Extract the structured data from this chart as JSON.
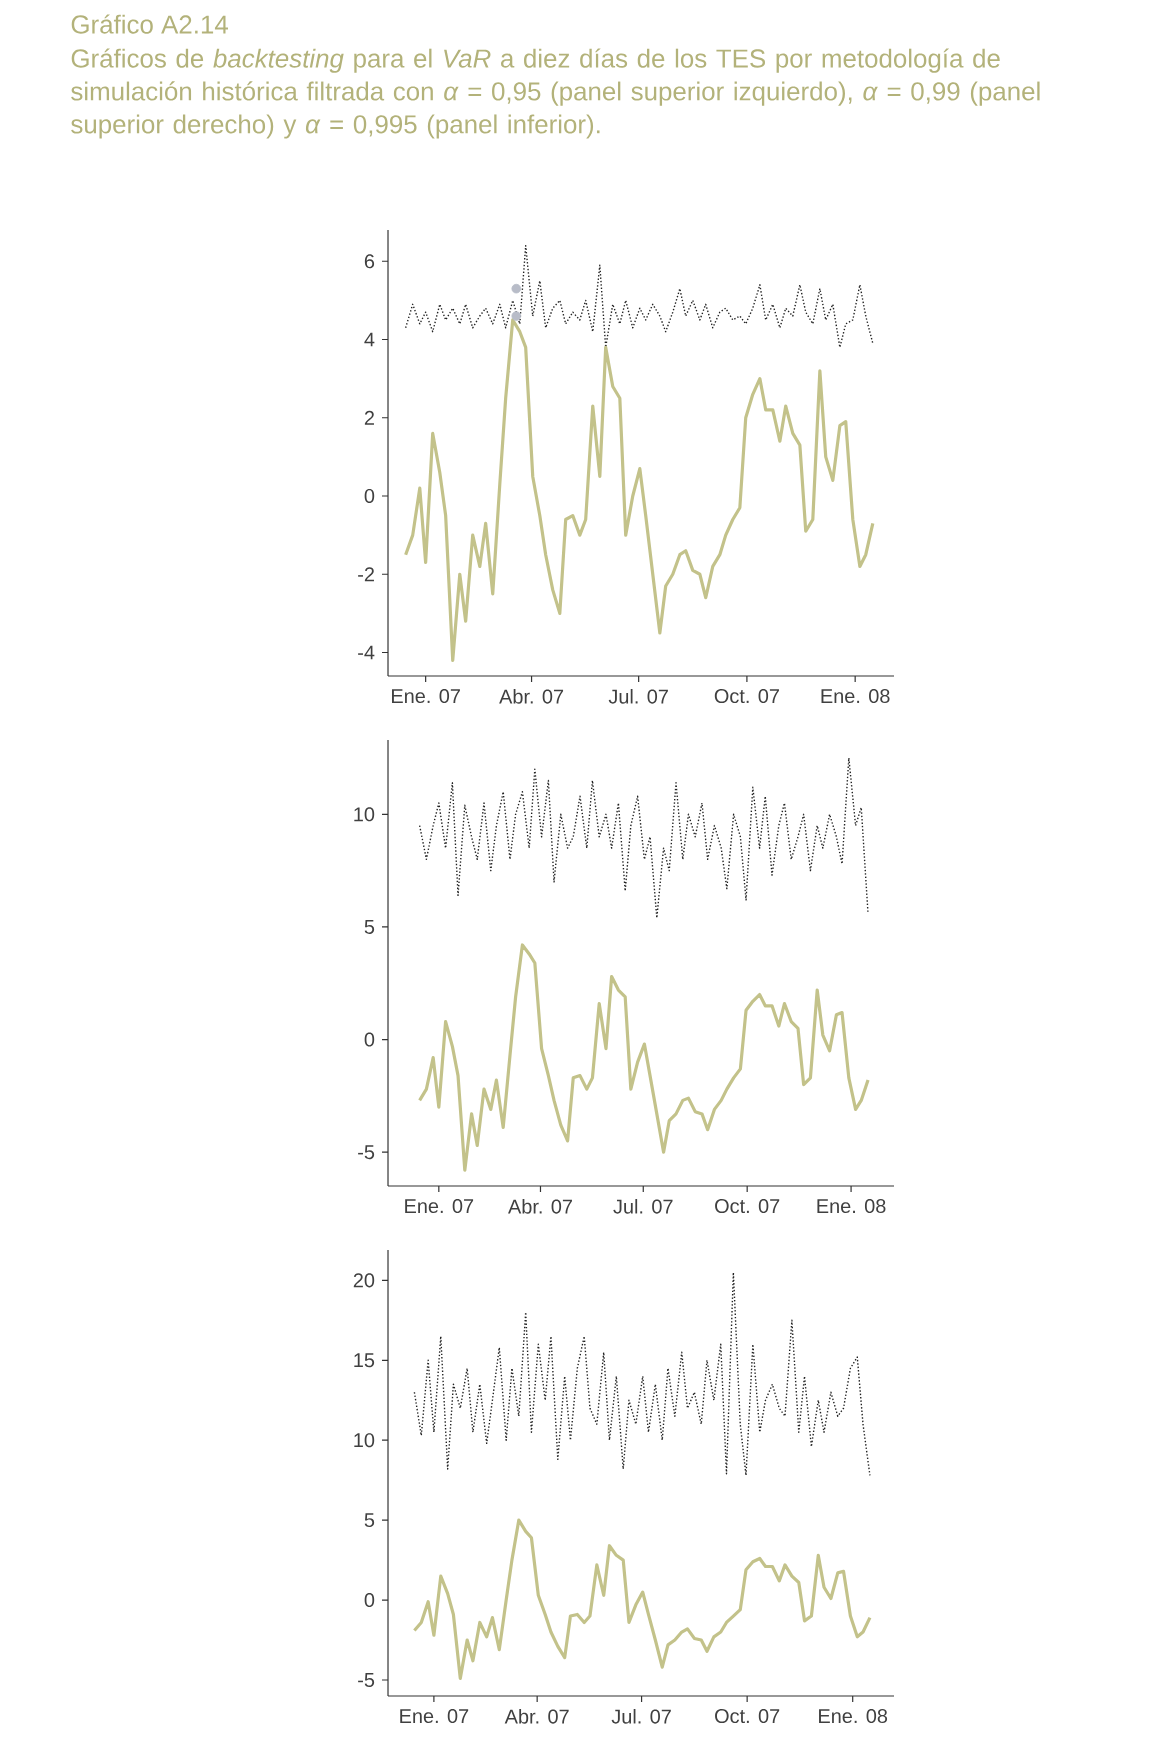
{
  "chart_data": [
    {
      "type": "line",
      "title": "Gráfico A2.14",
      "subtitle": "Gráficos de *backtesting* para el *VaR* a diez días de los TES por metodología de simulación histórica filtrada con *α* = 0,95 (panel superior izquierdo), *α* = 0,99 (panel superior derecho) y *α* = 0,995 (panel inferior).",
      "x": [
        "2006-12-15",
        "2006-12-21",
        "2006-12-27",
        "2007-01-01",
        "2007-01-07",
        "2007-01-13",
        "2007-01-18",
        "2007-01-24",
        "2007-01-30",
        "2007-02-04",
        "2007-02-10",
        "2007-02-16",
        "2007-02-21",
        "2007-02-27",
        "2007-03-05",
        "2007-03-10",
        "2007-03-16",
        "2007-03-22",
        "2007-03-27",
        "2007-04-02",
        "2007-04-08",
        "2007-04-13",
        "2007-04-19",
        "2007-04-25",
        "2007-04-30",
        "2007-05-06",
        "2007-05-12",
        "2007-05-17",
        "2007-05-23",
        "2007-05-29",
        "2007-06-03",
        "2007-06-09",
        "2007-06-15",
        "2007-06-20",
        "2007-06-26",
        "2007-07-02",
        "2007-07-07",
        "2007-07-13",
        "2007-07-19",
        "2007-07-24",
        "2007-07-30",
        "2007-08-05",
        "2007-08-10",
        "2007-08-16",
        "2007-08-22",
        "2007-08-27",
        "2007-09-02",
        "2007-09-08",
        "2007-09-13",
        "2007-09-19",
        "2007-09-25",
        "2007-09-30",
        "2007-10-06",
        "2007-10-12",
        "2007-10-17",
        "2007-10-23",
        "2007-10-29",
        "2007-11-03",
        "2007-11-09",
        "2007-11-15",
        "2007-11-20",
        "2007-11-26",
        "2007-12-02",
        "2007-12-07",
        "2007-12-13",
        "2007-12-19",
        "2007-12-24",
        "2007-12-30",
        "2008-01-05",
        "2008-01-10",
        "2008-01-16"
      ],
      "series": [
        {
          "color": "#222222",
          "line_style": "dotted",
          "values": [
            4.3,
            4.9,
            4.4,
            4.7,
            4.2,
            4.9,
            4.5,
            4.8,
            4.4,
            4.9,
            4.3,
            4.6,
            4.8,
            4.4,
            4.9,
            4.3,
            5.0,
            4.4,
            6.4,
            4.6,
            5.5,
            4.3,
            4.8,
            5.0,
            4.4,
            4.7,
            4.5,
            5.0,
            4.2,
            5.9,
            3.8,
            4.9,
            4.4,
            5.0,
            4.3,
            4.8,
            4.5,
            4.9,
            4.6,
            4.2,
            4.7,
            5.3,
            4.6,
            5.0,
            4.5,
            4.9,
            4.3,
            4.7,
            4.8,
            4.5,
            4.6,
            4.4,
            4.8,
            5.4,
            4.5,
            4.9,
            4.3,
            4.8,
            4.6,
            5.4,
            4.7,
            4.4,
            5.3,
            4.5,
            4.9,
            3.8,
            4.4,
            4.5,
            5.4,
            4.6,
            3.9
          ]
        },
        {
          "color": "#c3c28a",
          "line_style": "solid",
          "values": [
            -1.5,
            -1.0,
            0.2,
            -1.7,
            1.6,
            0.6,
            -0.5,
            -4.2,
            -2.0,
            -3.2,
            -1.0,
            -1.8,
            -0.7,
            -2.5,
            0.3,
            2.5,
            4.5,
            4.2,
            3.8,
            0.5,
            -0.5,
            -1.5,
            -2.4,
            -3.0,
            -0.6,
            -0.5,
            -1.0,
            -0.6,
            2.3,
            0.5,
            3.8,
            2.8,
            2.5,
            -1.0,
            0.0,
            0.7,
            -0.5,
            -2.0,
            -3.5,
            -2.3,
            -2.0,
            -1.5,
            -1.4,
            -1.9,
            -2.0,
            -2.6,
            -1.8,
            -1.5,
            -1.0,
            -0.6,
            -0.3,
            2.0,
            2.6,
            3.0,
            2.2,
            2.2,
            1.4,
            2.3,
            1.6,
            1.3,
            -0.9,
            -0.6,
            3.2,
            1.0,
            0.4,
            1.8,
            1.9,
            -0.6,
            -1.8,
            -1.5,
            -0.7
          ]
        },
        {
          "type": "scatter",
          "marker": "circle",
          "color": "#b8bcc8",
          "x": [
            "2007-03-19",
            "2007-03-19"
          ],
          "values": [
            5.3,
            4.6
          ]
        }
      ],
      "xlim": [
        "2006-11-30",
        "2008-02-03"
      ],
      "ylim": [
        -4.6,
        6.8
      ],
      "xticks": [
        {
          "value": "2007-01-01",
          "label": "Ene. 07"
        },
        {
          "value": "2007-04-01",
          "label": "Abr. 07"
        },
        {
          "value": "2007-07-01",
          "label": "Jul. 07"
        },
        {
          "value": "2007-10-01",
          "label": "Oct. 07"
        },
        {
          "value": "2008-01-01",
          "label": "Ene. 08"
        }
      ],
      "yticks": [
        -4,
        -2,
        0,
        2,
        4,
        6
      ]
    },
    {
      "type": "line",
      "x": [
        "2006-12-15",
        "2006-12-21",
        "2006-12-27",
        "2007-01-01",
        "2007-01-07",
        "2007-01-13",
        "2007-01-18",
        "2007-01-24",
        "2007-01-30",
        "2007-02-04",
        "2007-02-10",
        "2007-02-16",
        "2007-02-21",
        "2007-02-27",
        "2007-03-05",
        "2007-03-10",
        "2007-03-16",
        "2007-03-22",
        "2007-03-27",
        "2007-04-02",
        "2007-04-08",
        "2007-04-13",
        "2007-04-19",
        "2007-04-25",
        "2007-04-30",
        "2007-05-06",
        "2007-05-12",
        "2007-05-17",
        "2007-05-23",
        "2007-05-29",
        "2007-06-03",
        "2007-06-09",
        "2007-06-15",
        "2007-06-20",
        "2007-06-26",
        "2007-07-02",
        "2007-07-07",
        "2007-07-13",
        "2007-07-19",
        "2007-07-24",
        "2007-07-30",
        "2007-08-05",
        "2007-08-10",
        "2007-08-16",
        "2007-08-22",
        "2007-08-27",
        "2007-09-02",
        "2007-09-08",
        "2007-09-13",
        "2007-09-19",
        "2007-09-25",
        "2007-09-30",
        "2007-10-06",
        "2007-10-12",
        "2007-10-17",
        "2007-10-23",
        "2007-10-29",
        "2007-11-03",
        "2007-11-09",
        "2007-11-15",
        "2007-11-20",
        "2007-11-26",
        "2007-12-02",
        "2007-12-07",
        "2007-12-13",
        "2007-12-19",
        "2007-12-24",
        "2007-12-30",
        "2008-01-05",
        "2008-01-10",
        "2008-01-16"
      ],
      "series": [
        {
          "color": "#222222",
          "line_style": "dotted",
          "values": [
            9.5,
            8.0,
            9.5,
            10.5,
            8.5,
            11.4,
            6.4,
            10.4,
            9.0,
            8.0,
            10.5,
            7.5,
            9.5,
            11.0,
            8.0,
            10.0,
            11.0,
            8.5,
            12.0,
            9.0,
            11.5,
            7.0,
            10.0,
            8.5,
            9.0,
            10.8,
            8.5,
            11.5,
            9.0,
            10.0,
            8.5,
            10.5,
            6.6,
            9.5,
            10.8,
            8.0,
            9.0,
            5.4,
            8.5,
            7.5,
            11.4,
            8.0,
            10.0,
            9.0,
            10.5,
            8.0,
            9.5,
            8.5,
            6.7,
            10.0,
            9.0,
            6.2,
            11.2,
            8.5,
            10.8,
            7.3,
            9.5,
            10.5,
            8.0,
            9.0,
            10.0,
            7.5,
            9.5,
            8.5,
            10.0,
            9.0,
            7.8,
            12.5,
            9.5,
            10.3,
            5.6
          ]
        },
        {
          "color": "#c3c28a",
          "line_style": "solid",
          "values": [
            -2.7,
            -2.2,
            -0.8,
            -3.0,
            0.8,
            -0.3,
            -1.6,
            -5.8,
            -3.3,
            -4.7,
            -2.2,
            -3.1,
            -1.8,
            -3.9,
            -0.7,
            1.9,
            4.2,
            3.8,
            3.4,
            -0.4,
            -1.6,
            -2.7,
            -3.8,
            -4.5,
            -1.7,
            -1.6,
            -2.2,
            -1.7,
            1.6,
            -0.4,
            2.8,
            2.2,
            1.9,
            -2.2,
            -1.0,
            -0.2,
            -1.6,
            -3.3,
            -5.0,
            -3.6,
            -3.3,
            -2.7,
            -2.6,
            -3.2,
            -3.3,
            -4.0,
            -3.1,
            -2.7,
            -2.2,
            -1.7,
            -1.3,
            1.3,
            1.7,
            2.0,
            1.5,
            1.5,
            0.6,
            1.6,
            0.8,
            0.5,
            -2.0,
            -1.7,
            2.2,
            0.2,
            -0.5,
            1.1,
            1.2,
            -1.7,
            -3.1,
            -2.7,
            -1.8
          ]
        }
      ],
      "xlim": [
        "2006-11-17",
        "2008-02-08"
      ],
      "ylim": [
        -6.5,
        13.3
      ],
      "xticks": [
        {
          "value": "2007-01-01",
          "label": "Ene. 07"
        },
        {
          "value": "2007-04-01",
          "label": "Abr. 07"
        },
        {
          "value": "2007-07-01",
          "label": "Jul. 07"
        },
        {
          "value": "2007-10-01",
          "label": "Oct. 07"
        },
        {
          "value": "2008-01-01",
          "label": "Ene. 08"
        }
      ],
      "yticks": [
        -5,
        0,
        5,
        10
      ]
    },
    {
      "type": "line",
      "x": [
        "2006-12-15",
        "2006-12-21",
        "2006-12-27",
        "2007-01-01",
        "2007-01-07",
        "2007-01-13",
        "2007-01-18",
        "2007-01-24",
        "2007-01-30",
        "2007-02-04",
        "2007-02-10",
        "2007-02-16",
        "2007-02-21",
        "2007-02-27",
        "2007-03-05",
        "2007-03-10",
        "2007-03-16",
        "2007-03-22",
        "2007-03-27",
        "2007-04-02",
        "2007-04-08",
        "2007-04-13",
        "2007-04-19",
        "2007-04-25",
        "2007-04-30",
        "2007-05-06",
        "2007-05-12",
        "2007-05-17",
        "2007-05-23",
        "2007-05-29",
        "2007-06-03",
        "2007-06-09",
        "2007-06-15",
        "2007-06-20",
        "2007-06-26",
        "2007-07-02",
        "2007-07-07",
        "2007-07-13",
        "2007-07-19",
        "2007-07-24",
        "2007-07-30",
        "2007-08-05",
        "2007-08-10",
        "2007-08-16",
        "2007-08-22",
        "2007-08-27",
        "2007-09-02",
        "2007-09-08",
        "2007-09-13",
        "2007-09-19",
        "2007-09-25",
        "2007-09-30",
        "2007-10-06",
        "2007-10-12",
        "2007-10-17",
        "2007-10-23",
        "2007-10-29",
        "2007-11-03",
        "2007-11-09",
        "2007-11-15",
        "2007-11-20",
        "2007-11-26",
        "2007-12-02",
        "2007-12-07",
        "2007-12-13",
        "2007-12-19",
        "2007-12-24",
        "2007-12-30",
        "2008-01-05",
        "2008-01-10",
        "2008-01-16"
      ],
      "series": [
        {
          "color": "#222222",
          "line_style": "dotted",
          "values": [
            13.0,
            10.3,
            15.0,
            10.5,
            16.5,
            8.2,
            13.5,
            12.0,
            14.5,
            10.5,
            13.5,
            9.8,
            12.5,
            15.8,
            10.0,
            14.5,
            11.5,
            18.0,
            10.5,
            16.0,
            12.5,
            16.5,
            8.8,
            14.0,
            10.0,
            14.5,
            16.5,
            12.0,
            11.0,
            15.5,
            10.0,
            14.0,
            8.2,
            12.5,
            11.0,
            14.0,
            10.5,
            13.5,
            10.0,
            14.5,
            11.5,
            15.5,
            12.0,
            13.0,
            11.0,
            15.0,
            12.5,
            16.0,
            7.9,
            20.5,
            11.0,
            7.8,
            16.0,
            10.5,
            12.5,
            13.5,
            12.0,
            11.5,
            17.5,
            10.5,
            14.0,
            9.6,
            12.5,
            10.5,
            13.0,
            11.5,
            12.0,
            14.5,
            15.2,
            11.0,
            7.8
          ]
        },
        {
          "color": "#c3c28a",
          "line_style": "solid",
          "values": [
            -1.9,
            -1.4,
            -0.1,
            -2.2,
            1.5,
            0.4,
            -0.9,
            -4.9,
            -2.5,
            -3.8,
            -1.4,
            -2.3,
            -1.1,
            -3.1,
            0.0,
            2.5,
            5.0,
            4.3,
            3.9,
            0.3,
            -0.9,
            -2.0,
            -2.9,
            -3.6,
            -1.0,
            -0.9,
            -1.4,
            -1.0,
            2.2,
            0.3,
            3.4,
            2.8,
            2.5,
            -1.4,
            -0.3,
            0.5,
            -0.9,
            -2.5,
            -4.2,
            -2.8,
            -2.5,
            -2.0,
            -1.8,
            -2.4,
            -2.5,
            -3.2,
            -2.3,
            -2.0,
            -1.4,
            -1.0,
            -0.6,
            1.9,
            2.4,
            2.6,
            2.1,
            2.1,
            1.2,
            2.2,
            1.5,
            1.1,
            -1.3,
            -1.0,
            2.8,
            0.8,
            0.1,
            1.7,
            1.8,
            -1.0,
            -2.3,
            -2.0,
            -1.1
          ]
        }
      ],
      "xlim": [
        "2006-11-22",
        "2008-02-06"
      ],
      "ylim": [
        -6,
        21.9
      ],
      "xticks": [
        {
          "value": "2007-01-01",
          "label": "Ene. 07"
        },
        {
          "value": "2007-04-01",
          "label": "Abr. 07"
        },
        {
          "value": "2007-07-01",
          "label": "Jul. 07"
        },
        {
          "value": "2007-10-01",
          "label": "Oct. 07"
        },
        {
          "value": "2008-01-01",
          "label": "Ene. 08"
        }
      ],
      "yticks": [
        -5,
        0,
        5,
        10,
        15,
        20
      ]
    }
  ]
}
